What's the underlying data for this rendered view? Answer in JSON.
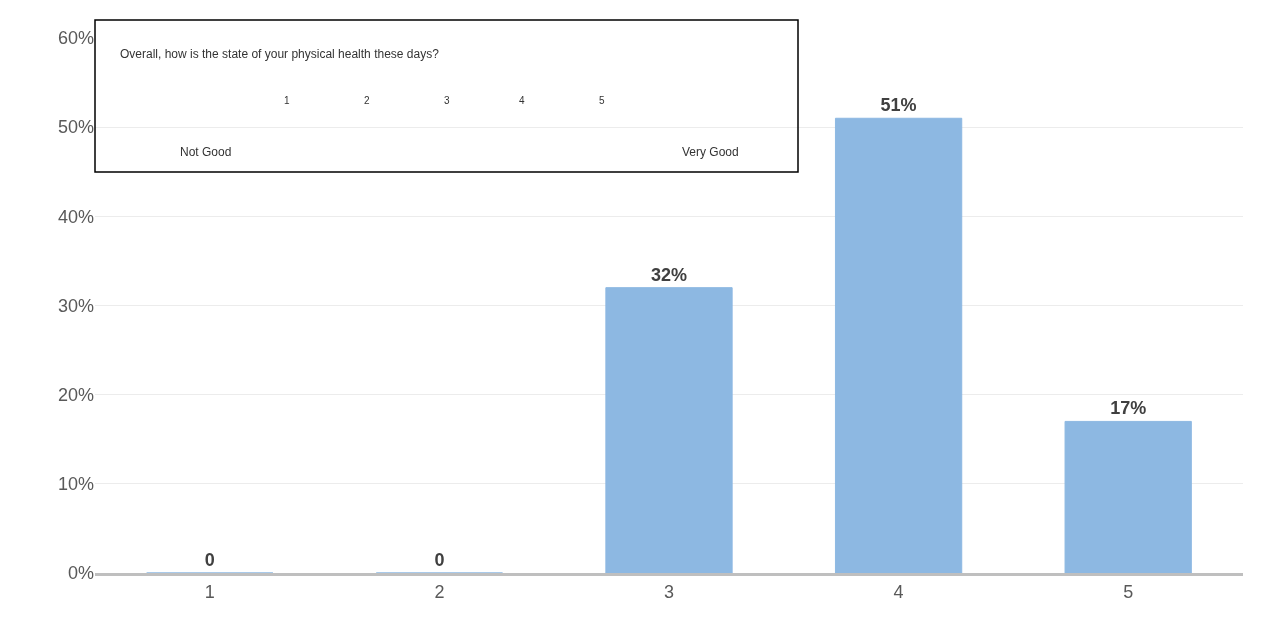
{
  "chart_data": {
    "type": "bar",
    "categories": [
      "1",
      "2",
      "3",
      "4",
      "5"
    ],
    "values": [
      0,
      0,
      32,
      51,
      17
    ],
    "value_labels": [
      "0",
      "0",
      "32%",
      "51%",
      "17%"
    ],
    "color": "#8db8e2",
    "ylim": [
      0,
      60
    ],
    "yticks": [
      {
        "value": 0,
        "label": "0%"
      },
      {
        "value": 10,
        "label": "10%"
      },
      {
        "value": 20,
        "label": "20%"
      },
      {
        "value": 30,
        "label": "30%"
      },
      {
        "value": 40,
        "label": "40%"
      },
      {
        "value": 50,
        "label": "50%"
      },
      {
        "value": 60,
        "label": "60%"
      }
    ],
    "grid": "y",
    "annotations": [
      "Overall, how is the state of your physical health these days?",
      "1",
      "2",
      "3",
      "4",
      "5",
      "Not Good",
      "Very Good"
    ]
  }
}
